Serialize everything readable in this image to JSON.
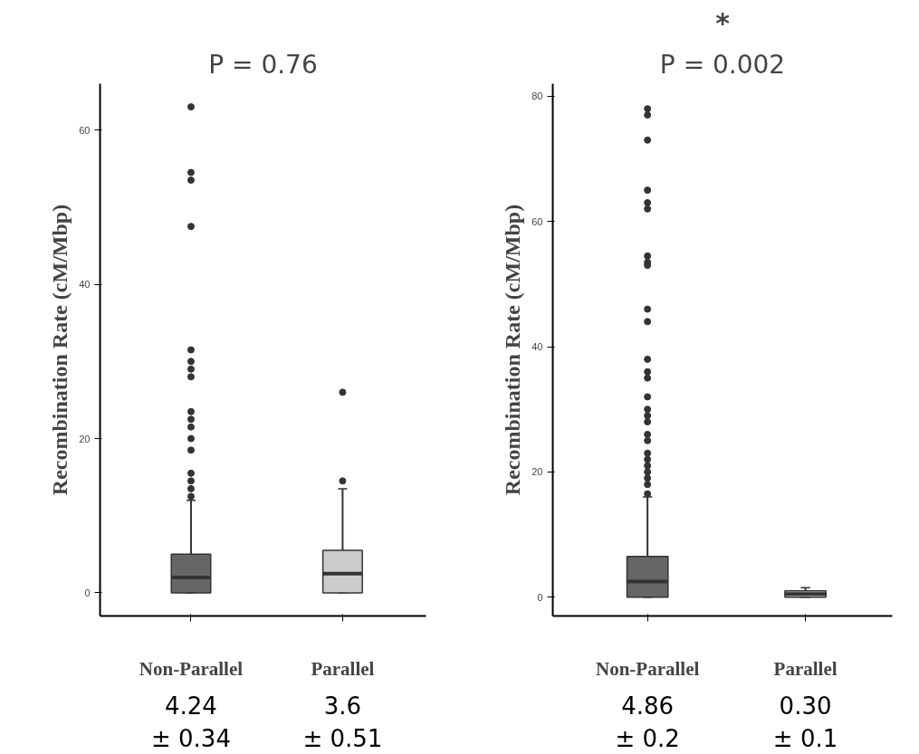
{
  "chart_data": [
    {
      "type": "box",
      "title": "P = 0.76",
      "ylabel": "Recombination Rate (cM/Mbp)",
      "categories": [
        "Non-Parallel",
        "Parallel"
      ],
      "colors": [
        "#666666",
        "#cccccc"
      ],
      "boxes": [
        {
          "low": 0,
          "q1": 0,
          "median": 2,
          "q3": 5,
          "high": 12,
          "outliers": [
            63,
            54.5,
            53.5,
            47.5,
            31.5,
            30,
            29,
            28,
            23.5,
            22.5,
            21.5,
            20,
            18.5,
            15.5,
            14.5,
            13.5,
            12.5
          ]
        },
        {
          "low": 0,
          "q1": 0,
          "median": 2.5,
          "q3": 5.5,
          "high": 13.5,
          "outliers": [
            26,
            14.5
          ]
        }
      ],
      "ylim": [
        -3,
        66
      ],
      "yticks": [
        0,
        20,
        40,
        60
      ],
      "grid": false,
      "annotations": [
        "4.24\n± 0.34",
        "3.6\n± 0.51"
      ]
    },
    {
      "type": "box",
      "title": "P = 0.002",
      "ylabel": "Recombination Rate (cM/Mbp)",
      "categories": [
        "Non-Parallel",
        "Parallel"
      ],
      "colors": [
        "#666666",
        "#cccccc"
      ],
      "boxes": [
        {
          "low": 0,
          "q1": 0,
          "median": 2.5,
          "q3": 6.5,
          "high": 16,
          "outliers": [
            78,
            77,
            73,
            65,
            63,
            62,
            54.5,
            53.5,
            53,
            46,
            44,
            38,
            36,
            35,
            32,
            30,
            29,
            28,
            26,
            25,
            23,
            22,
            21,
            20,
            19,
            18,
            16.5
          ]
        },
        {
          "low": 0,
          "q1": 0,
          "median": 0.5,
          "q3": 1,
          "high": 1.5
        }
      ],
      "ylim": [
        -3,
        82
      ],
      "yticks": [
        0,
        20,
        40,
        60,
        80
      ],
      "grid": false,
      "annotations": [
        "4.86\n± 0.2",
        "0.30\n± 0.1",
        "*"
      ]
    }
  ]
}
